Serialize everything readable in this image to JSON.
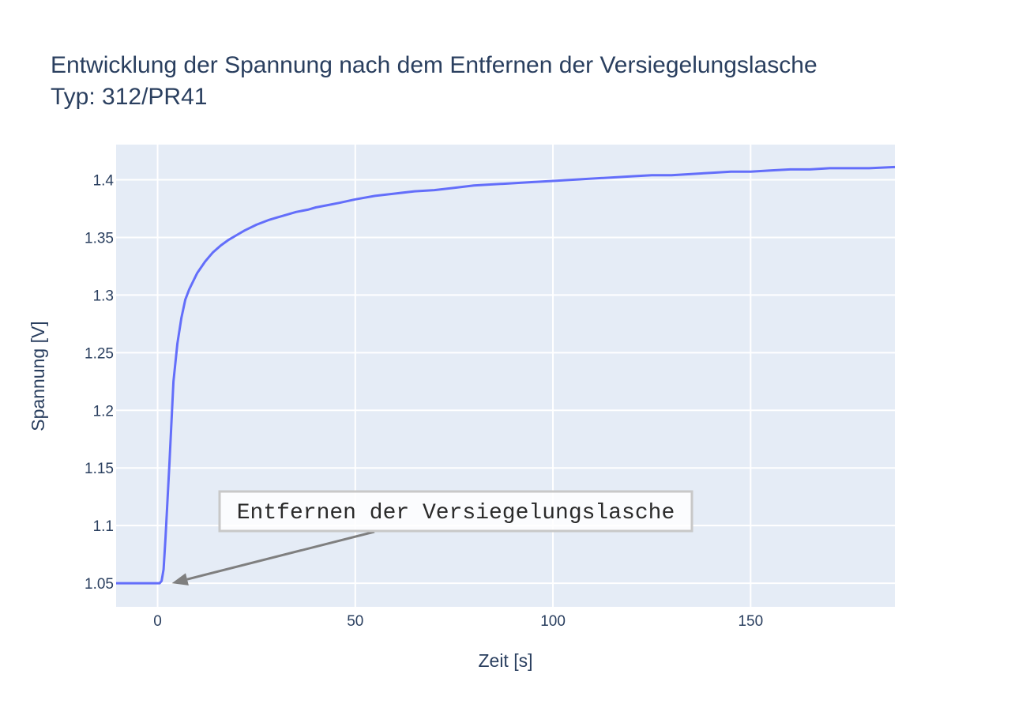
{
  "chart_data": {
    "type": "line",
    "title": "Entwicklung der Spannung nach dem Entfernen der Versiegelungslasche",
    "subtitle": "Typ: 312/PR41",
    "xlabel": "Zeit [s]",
    "ylabel": "Spannung [V]",
    "xlim": [
      -10.5,
      186.5
    ],
    "ylim": [
      1.0295,
      1.4305
    ],
    "x_ticks": [
      0,
      50,
      100,
      150
    ],
    "x_tick_labels": [
      "0",
      "50",
      "100",
      "150"
    ],
    "y_ticks": [
      1.05,
      1.1,
      1.15,
      1.2,
      1.25,
      1.3,
      1.35,
      1.4
    ],
    "y_tick_labels": [
      "1.05",
      "1.1",
      "1.15",
      "1.2",
      "1.25",
      "1.3",
      "1.35",
      "1.4"
    ],
    "grid": true,
    "legend": "none",
    "colors": {
      "line": "#636efa",
      "plot_bg": "#e5ecf6",
      "grid": "#ffffff",
      "text": "#2a3f5f",
      "annotation_border": "#c8c8c8",
      "annotation_arrow": "#7f7f7f"
    },
    "series": [
      {
        "x": [
          -10.5,
          0,
          0.5,
          1,
          1.5,
          2,
          3,
          4,
          5,
          6,
          7,
          8,
          9,
          10,
          11,
          12,
          13,
          14,
          16,
          18,
          20,
          22,
          25,
          28,
          30,
          32,
          35,
          38,
          40,
          43,
          46,
          50,
          55,
          60,
          65,
          70,
          75,
          80,
          85,
          90,
          95,
          100,
          105,
          110,
          115,
          120,
          125,
          130,
          135,
          140,
          145,
          150,
          155,
          160,
          165,
          170,
          175,
          180,
          186.5
        ],
        "y": [
          1.05,
          1.05,
          1.05,
          1.052,
          1.062,
          1.09,
          1.155,
          1.225,
          1.258,
          1.28,
          1.296,
          1.305,
          1.312,
          1.319,
          1.324,
          1.329,
          1.333,
          1.337,
          1.343,
          1.348,
          1.352,
          1.356,
          1.361,
          1.365,
          1.367,
          1.369,
          1.372,
          1.374,
          1.376,
          1.378,
          1.38,
          1.383,
          1.386,
          1.388,
          1.39,
          1.391,
          1.393,
          1.395,
          1.396,
          1.397,
          1.398,
          1.399,
          1.4,
          1.401,
          1.402,
          1.403,
          1.404,
          1.404,
          1.405,
          1.406,
          1.407,
          1.407,
          1.408,
          1.409,
          1.409,
          1.41,
          1.41,
          1.41,
          1.411
        ]
      }
    ],
    "annotations": [
      {
        "text": "Entfernen der Versiegelungslasche",
        "arrow_target": {
          "x": 2,
          "y": 1.05
        }
      }
    ]
  }
}
